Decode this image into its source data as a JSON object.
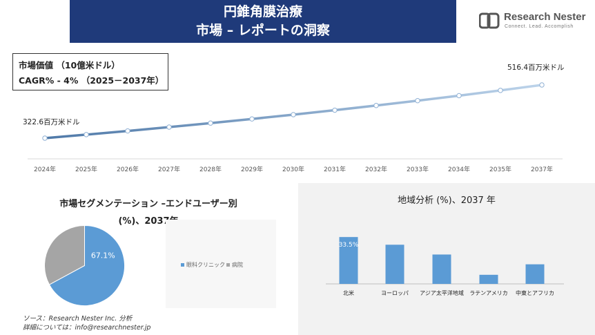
{
  "header": {
    "title_line1": "円錐角膜治療",
    "title_line2": "市場 – レポートの洞察"
  },
  "logo": {
    "name": "Research Nester",
    "tagline": "Connect. Lead. Accomplish"
  },
  "kpi": {
    "market_value_label": "市場価値 （10億米ドル）",
    "cagr_label": "CAGR% - 4% （2025－2037年）"
  },
  "line_chart": {
    "start_label": "322.6百万米ドル",
    "end_label": "516.4百万米ドル"
  },
  "segment": {
    "title_line1": "市場セグメンテーション –エンドユーザー別",
    "title_line2": "(%)、2037年"
  },
  "regional": {
    "title": "地域分析 (%)、2037 年"
  },
  "source": {
    "line1": "ソース：Research Nester Inc. 分析",
    "line2": "詳細については：info@researchnester.jp"
  },
  "colors": {
    "header_bg": "#1f3a7a",
    "line": "#5b86b6",
    "pie_primary": "#5b9bd5",
    "pie_secondary": "#a5a5a5",
    "bar": "#5b9bd5"
  },
  "chart_data": [
    {
      "type": "line",
      "x": [
        "2024年",
        "2025年",
        "2026年",
        "2027年",
        "2028年",
        "2029年",
        "2030年",
        "2031年",
        "2032年",
        "2033年",
        "2034年",
        "2035年",
        "2037年"
      ],
      "series": [
        {
          "values": [
            322.6,
            335.5,
            348.9,
            362.9,
            377.4,
            392.5,
            408.2,
            424.5,
            441.5,
            459.2,
            477.5,
            496.6,
            516.4
          ]
        }
      ],
      "title": "",
      "xlabel": "",
      "ylabel": "",
      "grid": false
    },
    {
      "type": "pie",
      "categories": [
        "眼科クリニック",
        "病院"
      ],
      "values": [
        67.1,
        32.9
      ],
      "data_labels": [
        "67.1%",
        ""
      ],
      "legend": "right"
    },
    {
      "type": "bar",
      "categories": [
        "北米",
        "ヨーロッパ",
        "アジア太平洋地域",
        "ラテンアメリカ",
        "中東とアフリカ"
      ],
      "values": [
        33.5,
        28.0,
        21.0,
        6.5,
        14.0
      ],
      "data_labels": [
        "33.5%",
        "",
        "",
        "",
        ""
      ],
      "ylim": [
        0,
        40
      ]
    }
  ]
}
